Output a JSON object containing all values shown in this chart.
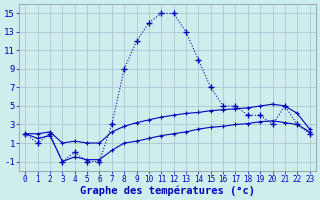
{
  "title": "Graphe des températures (°c)",
  "background_color": "#ceeeed",
  "grid_color": "#aabbcc",
  "line_color": "#0000bb",
  "x_hours": [
    0,
    1,
    2,
    3,
    4,
    5,
    6,
    7,
    8,
    9,
    10,
    11,
    12,
    13,
    14,
    15,
    16,
    17,
    18,
    19,
    20,
    21,
    22,
    23
  ],
  "temp_main": [
    2,
    1,
    2,
    -1,
    0,
    -1,
    -1,
    3,
    9,
    12,
    14,
    15,
    15,
    13,
    10,
    7,
    5,
    5,
    4,
    4,
    3,
    5,
    3,
    2
  ],
  "temp_lo": [
    2,
    1.5,
    1.8,
    -1,
    -0.5,
    -0.8,
    -0.8,
    0.2,
    1.0,
    1.2,
    1.5,
    1.8,
    2.0,
    2.2,
    2.5,
    2.7,
    2.8,
    3.0,
    3.1,
    3.3,
    3.4,
    3.2,
    3.0,
    2.2
  ],
  "temp_hi": [
    2,
    2.0,
    2.2,
    1.0,
    1.2,
    1.0,
    1.0,
    2.2,
    2.8,
    3.2,
    3.5,
    3.8,
    4.0,
    4.2,
    4.3,
    4.5,
    4.6,
    4.7,
    4.8,
    5.0,
    5.2,
    5.0,
    4.2,
    2.5
  ],
  "ylim": [
    -2,
    16
  ],
  "yticks": [
    -1,
    1,
    3,
    5,
    7,
    9,
    11,
    13,
    15
  ],
  "xticks": [
    0,
    1,
    2,
    3,
    4,
    5,
    6,
    7,
    8,
    9,
    10,
    11,
    12,
    13,
    14,
    15,
    16,
    17,
    18,
    19,
    20,
    21,
    22,
    23
  ],
  "xlabel_fontsize": 7.5,
  "tick_fontsize_x": 5.5,
  "tick_fontsize_y": 6.5
}
